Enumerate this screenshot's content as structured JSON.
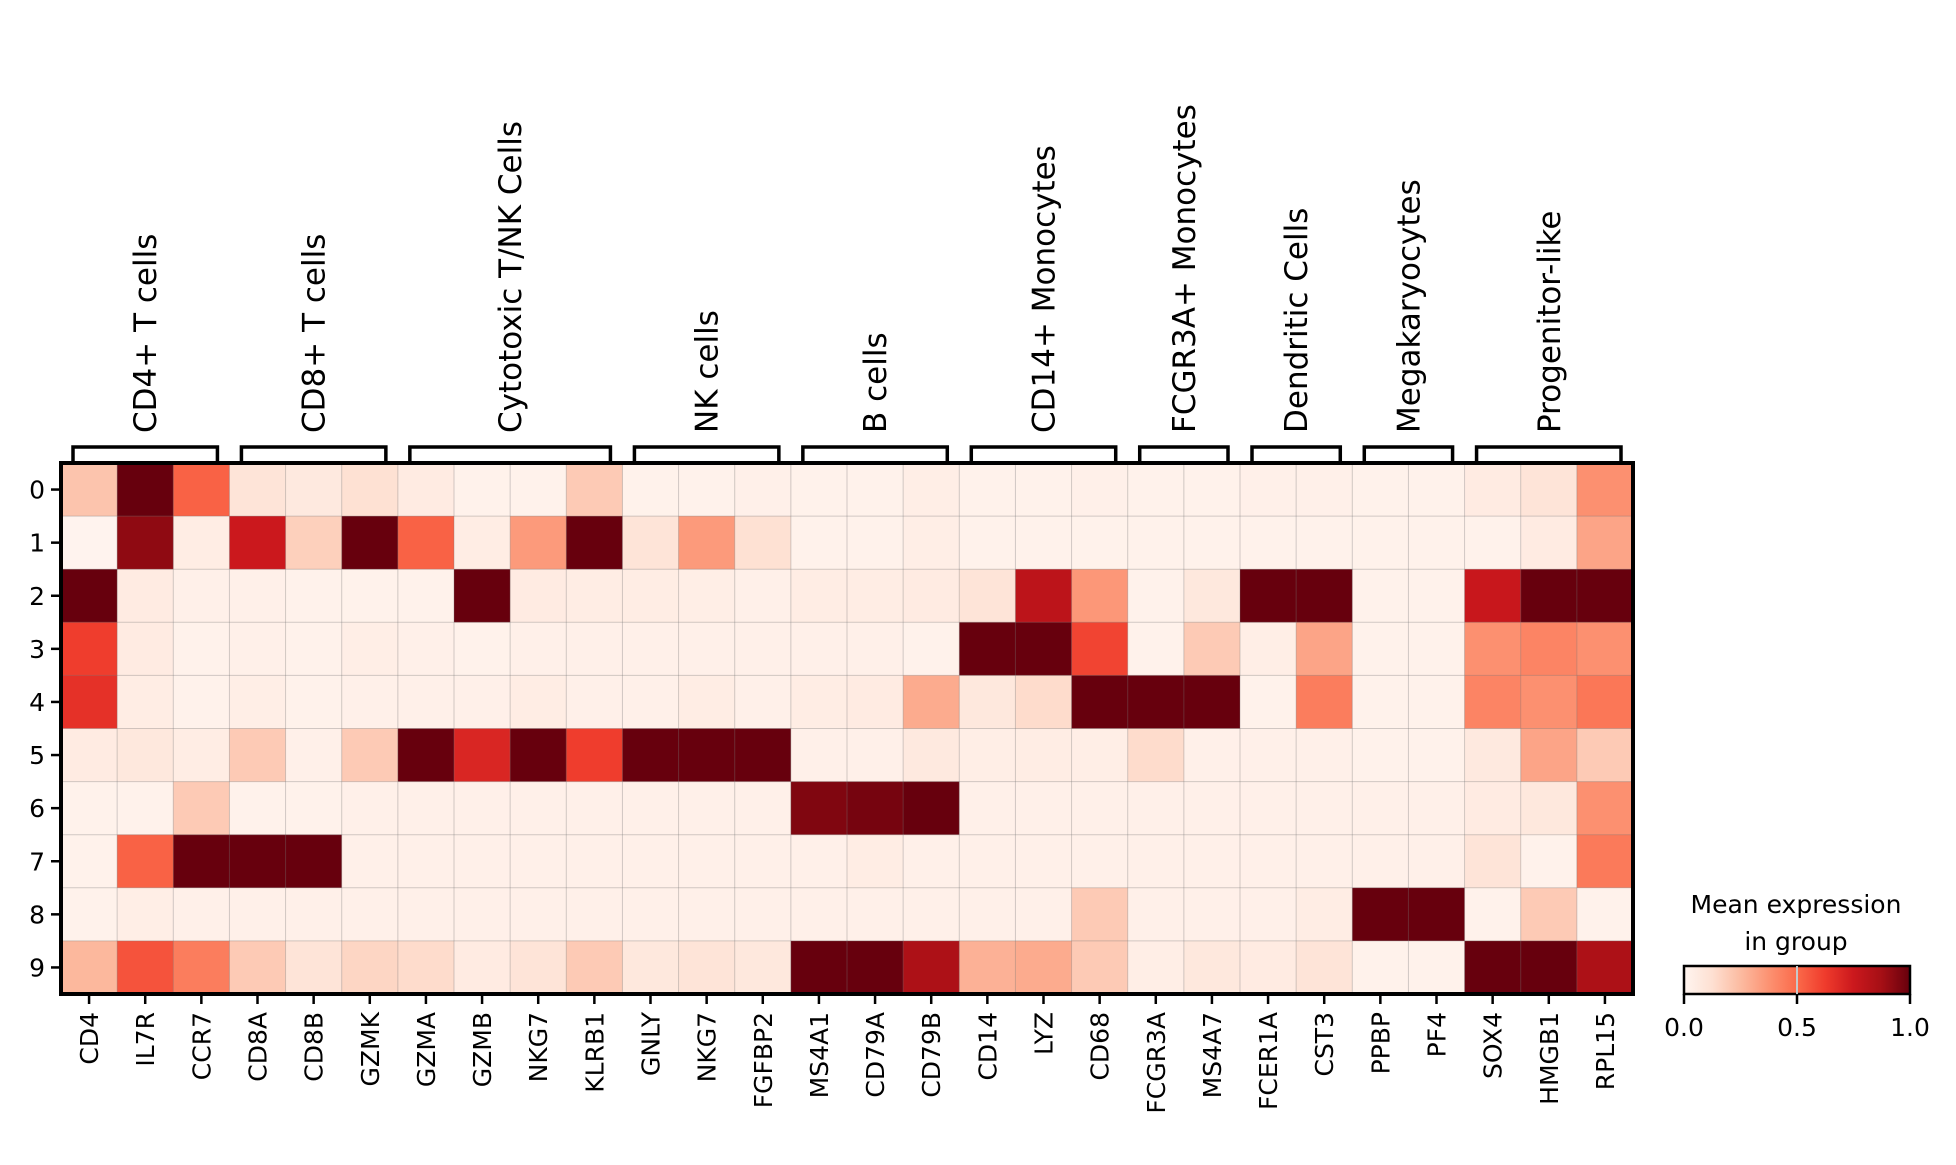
{
  "chart_data": {
    "type": "heatmap",
    "title": "",
    "xlabel": "",
    "ylabel": "",
    "rows": [
      "0",
      "1",
      "2",
      "3",
      "4",
      "5",
      "6",
      "7",
      "8",
      "9"
    ],
    "columns": [
      "CD4",
      "IL7R",
      "CCR7",
      "CD8A",
      "CD8B",
      "GZMK",
      "GZMA",
      "GZMB",
      "NKG7",
      "KLRB1",
      "GNLY",
      "NKG7",
      "FGFBP2",
      "MS4A1",
      "CD79A",
      "CD79B",
      "CD14",
      "LYZ",
      "CD68",
      "FCGR3A",
      "MS4A7",
      "FCER1A",
      "CST3",
      "PPBP",
      "PF4",
      "SOX4",
      "HMGB1",
      "RPL15"
    ],
    "groups": [
      {
        "label": "CD4+ T cells",
        "start": 0,
        "end": 2
      },
      {
        "label": "CD8+ T cells",
        "start": 3,
        "end": 5
      },
      {
        "label": "Cytotoxic T/NK Cells",
        "start": 6,
        "end": 9
      },
      {
        "label": "NK cells",
        "start": 10,
        "end": 12
      },
      {
        "label": "B cells",
        "start": 13,
        "end": 15
      },
      {
        "label": "CD14+ Monocytes",
        "start": 16,
        "end": 18
      },
      {
        "label": "FCGR3A+ Monocytes",
        "start": 19,
        "end": 20
      },
      {
        "label": "Dendritic Cells",
        "start": 21,
        "end": 22
      },
      {
        "label": "Megakaryocytes",
        "start": 23,
        "end": 24
      },
      {
        "label": "Progenitor-like",
        "start": 25,
        "end": 27
      }
    ],
    "values": [
      [
        0.22,
        1.0,
        0.52,
        0.1,
        0.07,
        0.12,
        0.06,
        0.02,
        0.02,
        0.2,
        0.02,
        0.02,
        0.03,
        0.02,
        0.02,
        0.04,
        0.02,
        0.02,
        0.03,
        0.02,
        0.02,
        0.03,
        0.03,
        0.02,
        0.02,
        0.06,
        0.1,
        0.38
      ],
      [
        0.01,
        0.92,
        0.05,
        0.75,
        0.18,
        1.0,
        0.52,
        0.05,
        0.35,
        1.0,
        0.1,
        0.35,
        0.12,
        0.02,
        0.02,
        0.04,
        0.02,
        0.02,
        0.02,
        0.02,
        0.02,
        0.02,
        0.02,
        0.02,
        0.02,
        0.02,
        0.06,
        0.32
      ],
      [
        1.0,
        0.06,
        0.03,
        0.03,
        0.02,
        0.02,
        0.02,
        1.0,
        0.06,
        0.05,
        0.05,
        0.04,
        0.03,
        0.05,
        0.05,
        0.06,
        0.1,
        0.8,
        0.36,
        0.02,
        0.08,
        1.0,
        1.0,
        0.02,
        0.02,
        0.76,
        1.0,
        1.0
      ],
      [
        0.62,
        0.06,
        0.02,
        0.03,
        0.02,
        0.04,
        0.03,
        0.02,
        0.03,
        0.03,
        0.03,
        0.03,
        0.03,
        0.03,
        0.03,
        0.02,
        1.0,
        1.0,
        0.6,
        0.02,
        0.2,
        0.04,
        0.32,
        0.02,
        0.02,
        0.38,
        0.42,
        0.38
      ],
      [
        0.66,
        0.05,
        0.02,
        0.04,
        0.02,
        0.03,
        0.03,
        0.03,
        0.05,
        0.03,
        0.03,
        0.05,
        0.03,
        0.05,
        0.06,
        0.3,
        0.08,
        0.14,
        1.0,
        1.0,
        1.0,
        0.02,
        0.44,
        0.02,
        0.02,
        0.42,
        0.38,
        0.46
      ],
      [
        0.06,
        0.08,
        0.05,
        0.2,
        0.03,
        0.2,
        1.0,
        0.7,
        1.0,
        0.62,
        1.0,
        1.0,
        1.0,
        0.03,
        0.03,
        0.07,
        0.04,
        0.05,
        0.04,
        0.14,
        0.03,
        0.03,
        0.03,
        0.02,
        0.02,
        0.07,
        0.32,
        0.2
      ],
      [
        0.02,
        0.02,
        0.2,
        0.02,
        0.02,
        0.03,
        0.03,
        0.03,
        0.03,
        0.03,
        0.03,
        0.03,
        0.03,
        0.95,
        0.97,
        1.0,
        0.03,
        0.03,
        0.03,
        0.03,
        0.03,
        0.03,
        0.03,
        0.03,
        0.03,
        0.06,
        0.08,
        0.38
      ],
      [
        0.02,
        0.52,
        1.0,
        1.0,
        1.0,
        0.03,
        0.03,
        0.03,
        0.03,
        0.03,
        0.03,
        0.03,
        0.03,
        0.03,
        0.05,
        0.03,
        0.03,
        0.03,
        0.03,
        0.03,
        0.03,
        0.03,
        0.03,
        0.03,
        0.03,
        0.1,
        0.02,
        0.45
      ],
      [
        0.02,
        0.04,
        0.03,
        0.03,
        0.03,
        0.03,
        0.03,
        0.03,
        0.03,
        0.03,
        0.03,
        0.03,
        0.03,
        0.03,
        0.03,
        0.03,
        0.03,
        0.03,
        0.2,
        0.03,
        0.03,
        0.03,
        0.05,
        1.0,
        1.0,
        0.02,
        0.2,
        0.02
      ],
      [
        0.26,
        0.56,
        0.44,
        0.2,
        0.1,
        0.16,
        0.14,
        0.06,
        0.1,
        0.2,
        0.08,
        0.1,
        0.08,
        1.0,
        1.0,
        0.85,
        0.28,
        0.3,
        0.2,
        0.04,
        0.08,
        0.06,
        0.1,
        0.02,
        0.02,
        1.0,
        1.0,
        0.85
      ]
    ],
    "colormap": "Reds",
    "colormap_stops": [
      "#fff5f0",
      "#fee0d2",
      "#fcbba1",
      "#fc9272",
      "#fb6a4a",
      "#ef3b2c",
      "#cb181d",
      "#a50f15",
      "#67000d"
    ],
    "vmin": 0.0,
    "vmax": 1.0,
    "colorbar": {
      "title_line1": "Mean expression",
      "title_line2": "in group",
      "ticks": [
        "0.0",
        "0.5",
        "1.0"
      ],
      "tick_values": [
        0.0,
        0.5,
        1.0
      ],
      "placement": "bottom-right"
    },
    "grid": true
  }
}
